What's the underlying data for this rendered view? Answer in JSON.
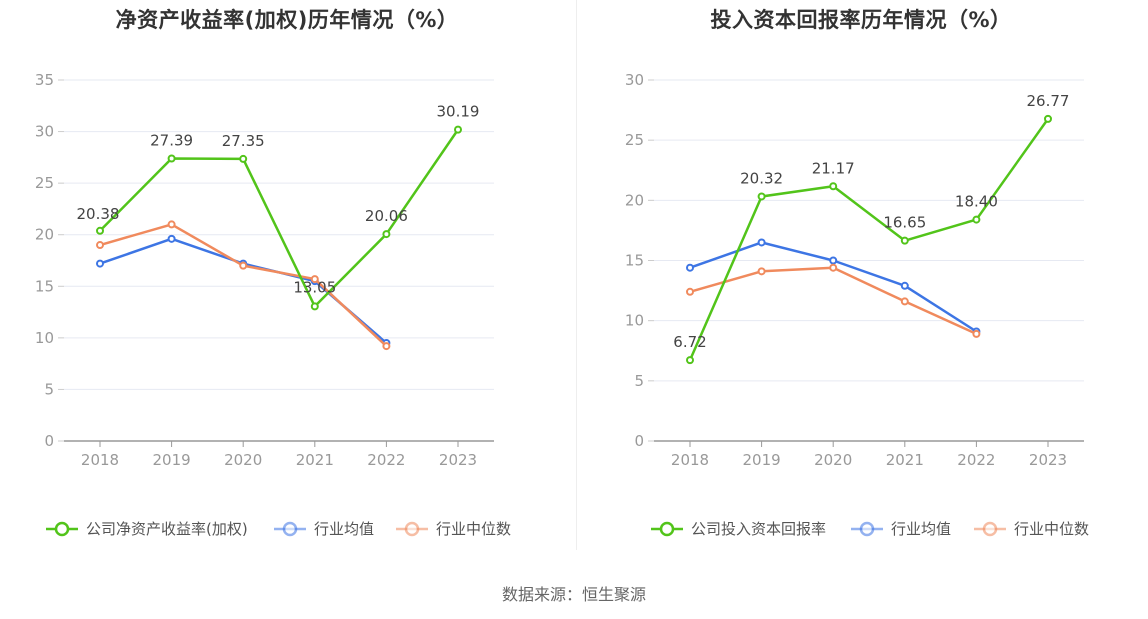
{
  "source": "数据来源：恒生聚源",
  "chart_data": [
    {
      "type": "line",
      "title": "净资产收益率(加权)历年情况（%）",
      "categories": [
        "2018",
        "2019",
        "2020",
        "2021",
        "2022",
        "2023"
      ],
      "ylim": [
        0,
        35
      ],
      "yticks": [
        0,
        5,
        10,
        15,
        20,
        25,
        30,
        35
      ],
      "grid": true,
      "legend_position": "bottom",
      "series": [
        {
          "name": "公司净资产收益率(加权)",
          "color": "#52c41a",
          "values": [
            20.38,
            27.39,
            27.35,
            13.05,
            20.06,
            30.19
          ],
          "labels": [
            "20.38",
            "27.39",
            "27.35",
            "13.05",
            "20.06",
            "30.19"
          ]
        },
        {
          "name": "行业均值",
          "color": "#3d75e4",
          "values": [
            17.2,
            19.6,
            17.2,
            15.5,
            9.5,
            null
          ]
        },
        {
          "name": "行业中位数",
          "color": "#f08a5d",
          "values": [
            19.0,
            21.0,
            17.0,
            15.7,
            9.2,
            null
          ]
        }
      ]
    },
    {
      "type": "line",
      "title": "投入资本回报率历年情况（%）",
      "categories": [
        "2018",
        "2019",
        "2020",
        "2021",
        "2022",
        "2023"
      ],
      "ylim": [
        0,
        30
      ],
      "yticks": [
        0,
        5,
        10,
        15,
        20,
        25,
        30
      ],
      "grid": true,
      "legend_position": "bottom",
      "series": [
        {
          "name": "公司投入资本回报率",
          "color": "#52c41a",
          "values": [
            6.72,
            20.32,
            21.17,
            16.65,
            18.4,
            26.77
          ],
          "labels": [
            "6.72",
            "20.32",
            "21.17",
            "16.65",
            "18.40",
            "26.77"
          ]
        },
        {
          "name": "行业均值",
          "color": "#3d75e4",
          "values": [
            14.4,
            16.5,
            15.0,
            12.9,
            9.1,
            null
          ]
        },
        {
          "name": "行业中位数",
          "color": "#f08a5d",
          "values": [
            12.4,
            14.1,
            14.4,
            11.6,
            8.9,
            null
          ]
        }
      ]
    }
  ]
}
